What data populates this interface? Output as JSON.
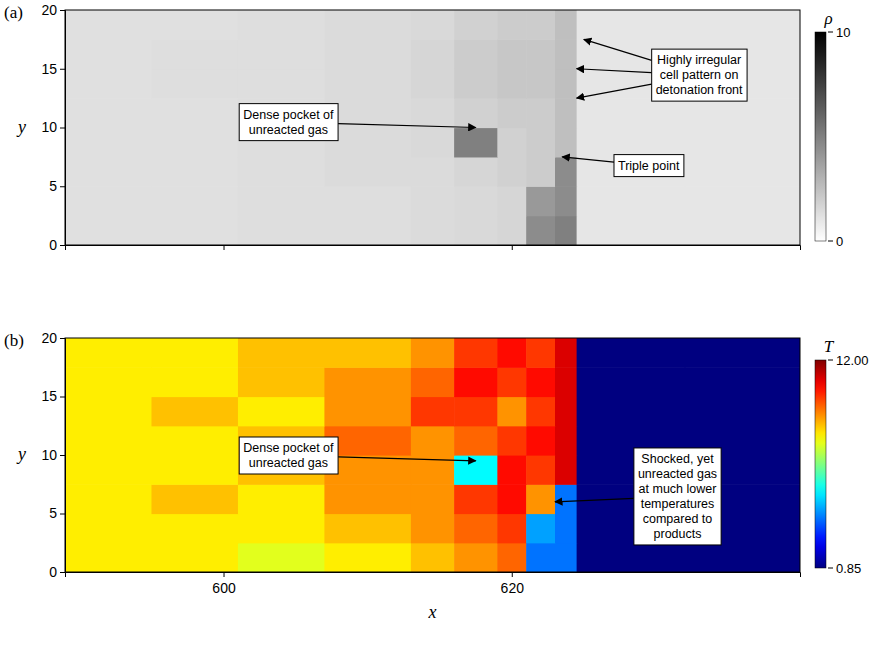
{
  "chart_data": [
    {
      "type": "heatmap",
      "panel_label": "(a)",
      "ylabel": "y",
      "xlim": [
        589,
        640
      ],
      "ylim": [
        0,
        20
      ],
      "xticks": [
        600,
        620
      ],
      "yticks": [
        0,
        5,
        10,
        15,
        20
      ],
      "tick_labels": "y",
      "color": "gray",
      "colorbar": {
        "label": "ρ",
        "range": [
          0,
          10
        ],
        "ticks": [
          0,
          10
        ]
      },
      "x_edges": [
        589,
        595,
        601,
        607,
        613,
        616,
        619,
        621,
        623,
        624.5,
        632,
        640
      ],
      "y_edges": [
        0,
        2.5,
        5,
        7.5,
        10,
        12.5,
        15,
        17.5,
        20
      ],
      "cells": [
        [
          1.2,
          1.2,
          1.3,
          1.3,
          1.4,
          1.5,
          1.6,
          4.5,
          5,
          1,
          1
        ],
        [
          1.2,
          1.2,
          1.3,
          1.3,
          1.4,
          1.5,
          1.6,
          4,
          4.5,
          1,
          1
        ],
        [
          1.2,
          1.2,
          1.3,
          1.4,
          1.4,
          1.6,
          1.8,
          2,
          4.5,
          1,
          1
        ],
        [
          1.2,
          1.2,
          1.3,
          1.4,
          1.5,
          5,
          1.8,
          2,
          2.5,
          1,
          1
        ],
        [
          1.2,
          1.2,
          1.3,
          1.4,
          1.5,
          1.8,
          2,
          2,
          2.5,
          1,
          1
        ],
        [
          1.2,
          1.3,
          1.3,
          1.4,
          1.6,
          2,
          2.2,
          2.2,
          2.5,
          1,
          1
        ],
        [
          1.2,
          1.3,
          1.3,
          1.4,
          1.6,
          2,
          2.2,
          2.2,
          2.5,
          1,
          1
        ],
        [
          1.2,
          1.2,
          1.3,
          1.4,
          1.5,
          1.8,
          2,
          2,
          2.5,
          1,
          1
        ]
      ],
      "annotations": [
        {
          "text": "Dense pocket of\nunreacted gas",
          "xytext": [
            604.5,
            10.5
          ],
          "xy": [
            [
              617.5,
              10
            ]
          ]
        },
        {
          "text": "Triple point",
          "xytext": [
            629.5,
            6.8
          ],
          "xy": [
            [
              623.5,
              7.5
            ]
          ]
        },
        {
          "text": "Highly irregular\ncell pattern on\ndetonation front",
          "xytext": [
            633,
            14.5
          ],
          "xy": [
            [
              625,
              17.5
            ],
            [
              624.5,
              15
            ],
            [
              624.5,
              12.5
            ]
          ]
        }
      ]
    },
    {
      "type": "heatmap",
      "panel_label": "(b)",
      "xlabel": "x",
      "ylabel": "y",
      "xlim": [
        589,
        640
      ],
      "ylim": [
        0,
        20
      ],
      "xticks": [
        600,
        620
      ],
      "yticks": [
        0,
        5,
        10,
        15,
        20
      ],
      "color": "jet",
      "colorbar": {
        "label": "T",
        "range": [
          0.85,
          12
        ],
        "ticks": [
          0.85,
          {
            "value": 12,
            "label": "12.00"
          }
        ]
      },
      "x_edges": [
        589,
        595,
        601,
        607,
        613,
        616,
        619,
        621,
        623,
        624.5,
        632,
        640
      ],
      "y_edges": [
        0,
        2.5,
        5,
        7.5,
        10,
        12.5,
        15,
        17.5,
        20
      ],
      "cells": [
        [
          8,
          8,
          7.5,
          8,
          8.5,
          9,
          9.5,
          3.5,
          3.5,
          0.85,
          0.85
        ],
        [
          8,
          8,
          8,
          8.5,
          9,
          9.5,
          10,
          4,
          3.5,
          0.85,
          0.85
        ],
        [
          8,
          8.5,
          8,
          9,
          9,
          10,
          10.5,
          9,
          3.5,
          0.85,
          0.85
        ],
        [
          8,
          8,
          8.5,
          9,
          9,
          5,
          10.5,
          10,
          11,
          0.85,
          0.85
        ],
        [
          8,
          8,
          8.5,
          9.5,
          9,
          9.5,
          10,
          10.5,
          11,
          0.85,
          0.85
        ],
        [
          8,
          8.5,
          8,
          9,
          10,
          10,
          9,
          10,
          11,
          0.85,
          0.85
        ],
        [
          8,
          8,
          8.5,
          9,
          9.5,
          10.5,
          10,
          10.5,
          11,
          0.85,
          0.85
        ],
        [
          8,
          8,
          8.5,
          8.5,
          9,
          10,
          10.5,
          10,
          11,
          0.85,
          0.85
        ]
      ],
      "annotations": [
        {
          "text": "Dense pocket of\nunreacted gas",
          "xytext": [
            604.5,
            10
          ],
          "xy": [
            [
              617.5,
              9.5
            ]
          ]
        },
        {
          "text": "Shocked, yet\nunreacted gas\nat much lower\ntemperatures\ncompared to\nproducts",
          "xytext": [
            631.5,
            6.5
          ],
          "xy": [
            [
              623,
              6
            ]
          ]
        }
      ]
    }
  ]
}
